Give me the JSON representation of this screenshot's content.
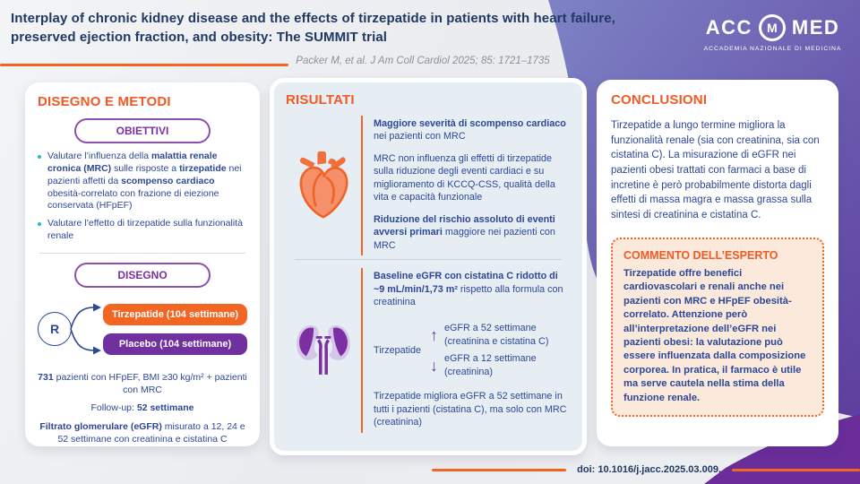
{
  "colors": {
    "accent_orange": "#f26522",
    "header_orange": "#f15a24",
    "purple": "#7b2fa3",
    "navy_text": "#2c4796",
    "title_navy": "#203864",
    "teal_bullet": "#29b7d3",
    "results_card_bg": "#e6eef4",
    "expert_box_bg": "#fbe9dc",
    "bg_purple_light": "#7d83c5",
    "bg_purple_dark": "#5e3f9f"
  },
  "header": {
    "title": "Interplay of chronic kidney disease and the effects of tirzepatide in patients with heart failure, preserved ejection fraction, and obesity: The SUMMIT trial",
    "citation": "Packer M, et al. J Am Coll Cardiol 2025; 85: 1721–1735",
    "logo": {
      "acc": "ACC",
      "monogram": "M",
      "med": "MED",
      "subtitle": "ACCADEMIA NAZIONALE DI MEDICINA"
    }
  },
  "methods": {
    "title": "DISEGNO E METODI",
    "objectives_label": "OBIETTIVI",
    "bullets": [
      [
        {
          "t": "Valutare l’influenza della "
        },
        {
          "t": "malattia renale cronica (MRC)",
          "b": true
        },
        {
          "t": " sulle risposte a "
        },
        {
          "t": "tirzepatide",
          "b": true
        },
        {
          "t": " nei pazienti affetti da "
        },
        {
          "t": "scompenso cardiaco",
          "b": true
        },
        {
          "t": " obesità-correlato con frazione di eiezione conservata (HFpEF)"
        }
      ],
      [
        {
          "t": "Valutare l’effetto di tirzepatide sulla funzionalità renale"
        }
      ]
    ],
    "design_label": "DISEGNO",
    "randomization_letter": "R",
    "arms": [
      {
        "label": "Tirzepatide (104 settimane)",
        "color": "#f26522"
      },
      {
        "label": "Placebo (104 settimane)",
        "color": "#7030a0"
      }
    ],
    "stats": [
      [
        {
          "t": "731",
          "b": true
        },
        {
          "t": " pazienti con HFpEF, BMI ≥30 kg/m² + pazienti con MRC"
        }
      ],
      [
        {
          "t": "Follow-up: "
        },
        {
          "t": "52 settimane",
          "b": true
        }
      ],
      [
        {
          "t": "Filtrato glomerulare (eGFR)",
          "b": true
        },
        {
          "t": " misurato a 12, 24 e 52 settimane con creatinina e cistatina C"
        }
      ]
    ]
  },
  "results": {
    "title": "RISULTATI",
    "cardiac": {
      "paragraphs": [
        [
          {
            "t": "Maggiore severità di scompenso cardiaco",
            "b": true
          },
          {
            "t": " nei pazienti con MRC"
          }
        ],
        [
          {
            "t": "MRC non influenza gli effetti di tirzepatide sulla riduzione degli eventi cardiaci e su miglioramento di KCCQ-CSS, qualità della vita e capacità funzionale"
          }
        ],
        [
          {
            "t": "Riduzione del rischio assoluto di eventi avversi primari",
            "b": true
          },
          {
            "t": " maggiore nei pazienti con MRC"
          }
        ]
      ]
    },
    "renal": {
      "intro": [
        {
          "t": "Baseline eGFR con cistatina C ridotto di ~9 mL/min/1,73 m²",
          "b": true
        },
        {
          "t": " rispetto alla formula con creatinina"
        }
      ],
      "drug_label": "Tirzepatide",
      "effects": [
        {
          "arrow": "↑",
          "direction": "up",
          "text": "eGFR a 52 settimane (creatinina e cistatina C)"
        },
        {
          "arrow": "↓",
          "direction": "down",
          "text": "eGFR a 12 settimane (creatinina)"
        }
      ],
      "footnote": "Tirzepatide migliora eGFR a 52 settimane in tutti i pazienti (cistatina C), ma solo con MRC (creatinina)"
    }
  },
  "conclusions": {
    "title": "CONCLUSIONI",
    "text": "Tirzepatide a lungo termine migliora la funzionalità renale (sia con creatinina, sia con cistatina C). La misurazione di eGFR nei pazienti obesi trattati con farmaci a base di incretine è però probabilmente distorta dagli effetti di massa magra e massa grassa sulla sintesi di creatinina e cistatina C.",
    "expert": {
      "title": "COMMENTO DELL’ESPERTO",
      "text": "Tirzepatide offre benefici cardiovascolari e renali anche nei pazienti con MRC e HFpEF obesità-correlato. Attenzione però all’interpretazione dell’eGFR nei pazienti obesi: la valutazione può essere influenzata dalla composizione corporea. In pratica, il farmaco è utile ma serve cautela nella stima della funzione renale."
    }
  },
  "footer": {
    "doi": "doi: 10.1016/j.jacc.2025.03.009."
  }
}
